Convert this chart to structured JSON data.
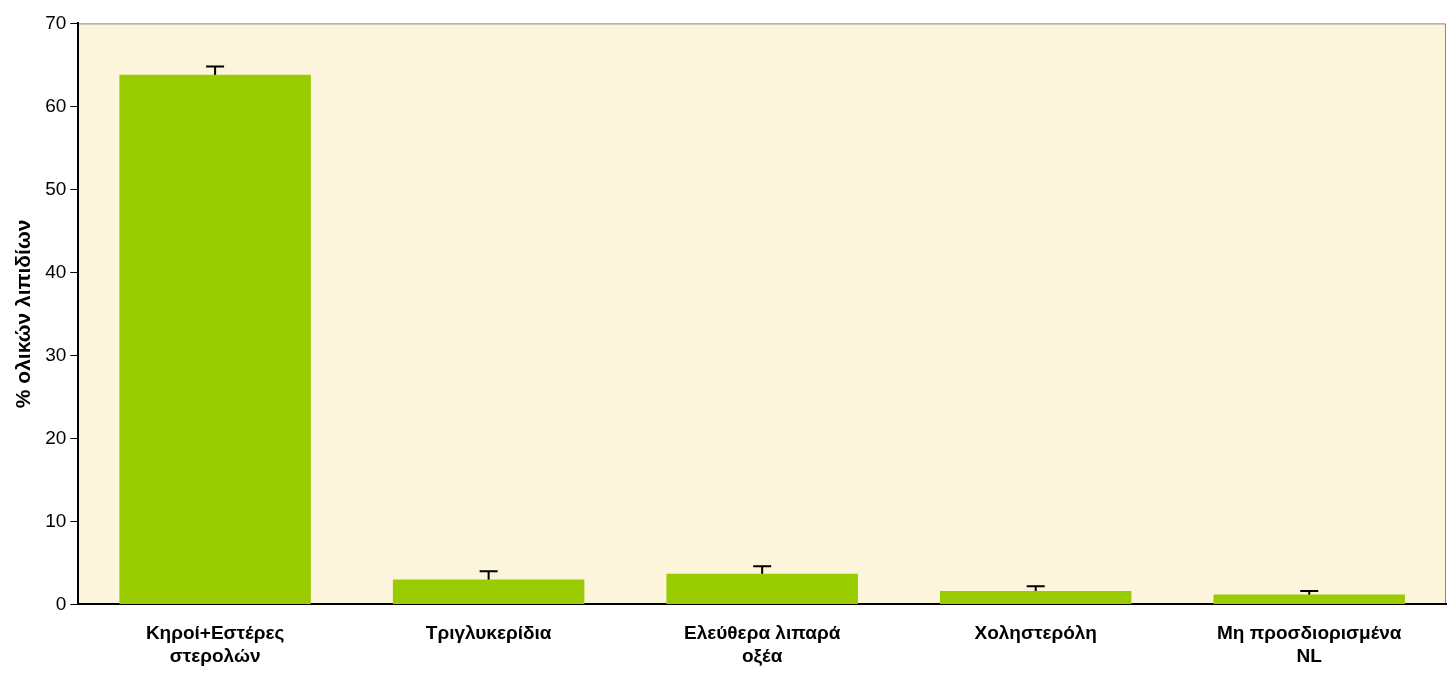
{
  "chart_data": {
    "type": "bar",
    "ylabel": "% ολικών λιπιδίων",
    "categories": [
      "Κηροί+Εστέρες στερολών",
      "Τριγλυκερίδια",
      "Ελεύθερα λιπαρά οξέα",
      "Χοληστερόλη",
      "Μη προσδιορισμένα NL"
    ],
    "values": [
      63.8,
      3.0,
      3.7,
      1.6,
      1.2
    ],
    "errors": [
      1.0,
      1.0,
      0.9,
      0.6,
      0.4
    ],
    "color": "#99cc00",
    "ylim": [
      0,
      70
    ],
    "yticks": [
      0,
      10,
      20,
      30,
      40,
      50,
      60,
      70
    ],
    "grid": false,
    "legend": false
  }
}
